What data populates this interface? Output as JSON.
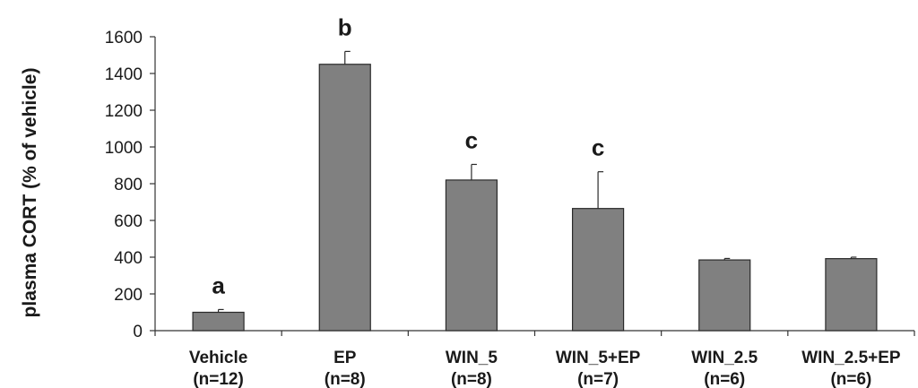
{
  "chart_data": {
    "type": "bar",
    "title": "",
    "xlabel": "",
    "ylabel": "plasma CORT (% of vehicle)",
    "ylim": [
      0,
      1600
    ],
    "yticks": [
      0,
      200,
      400,
      600,
      800,
      1000,
      1200,
      1400,
      1600
    ],
    "grid": false,
    "legend": "none",
    "bar_color": "#808080",
    "categories": [
      {
        "label": "Vehicle",
        "n": "(n=12)"
      },
      {
        "label": "EP",
        "n": "(n=8)"
      },
      {
        "label": "WIN_5",
        "n": "(n=8)"
      },
      {
        "label": "WIN_5+EP",
        "n": "(n=7)"
      },
      {
        "label": "WIN_2.5",
        "n": "(n=6)"
      },
      {
        "label": "WIN_2.5+EP",
        "n": "(n=6)"
      }
    ],
    "values": [
      100,
      1450,
      820,
      665,
      385,
      392
    ],
    "errors": [
      15,
      70,
      85,
      200,
      8,
      8
    ],
    "significance": [
      "a",
      "b",
      "c",
      "c",
      "",
      ""
    ]
  }
}
